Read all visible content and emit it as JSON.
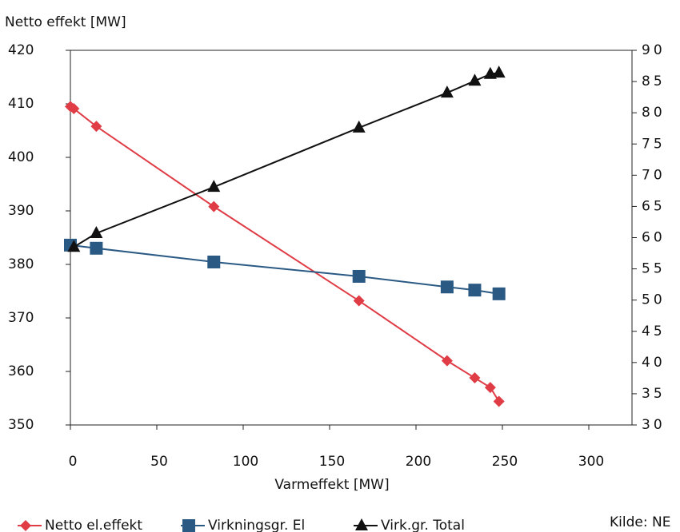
{
  "chart_data": {
    "type": "line",
    "y_label": "Netto effekt [MW]",
    "x_label": "Varmeffekt [MW]",
    "source": "Kilde: NE",
    "xlim": [
      0,
      325
    ],
    "xticks": [
      0,
      50,
      100,
      150,
      200,
      250,
      300
    ],
    "ylim": [
      350,
      420
    ],
    "yticks": [
      350,
      360,
      370,
      380,
      390,
      400,
      410,
      420
    ],
    "y2lim": [
      30,
      90
    ],
    "y2ticks": [
      30,
      35,
      40,
      45,
      50,
      55,
      60,
      65,
      70,
      75,
      80,
      85,
      90
    ],
    "series": [
      {
        "name": "Netto el.effekt",
        "color": "#e03c46",
        "marker": "diamond",
        "x": [
          0,
          2,
          15,
          83,
          167,
          218,
          234,
          243,
          248
        ],
        "values": [
          409.5,
          409.1,
          405.8,
          390.8,
          373.2,
          362,
          358.8,
          357,
          354.4
        ]
      },
      {
        "name": "Virkningsgr. El",
        "color": "#2a5a84",
        "marker": "square",
        "axis": "y2",
        "x": [
          0,
          15,
          83,
          167,
          218,
          234,
          248
        ],
        "values": [
          58.8,
          58.3,
          56.1,
          53.8,
          52.1,
          51.6,
          51.0
        ]
      },
      {
        "name": "Virk.gr. Total",
        "color": "#111111",
        "marker": "triangle",
        "axis": "y2",
        "x": [
          2,
          15,
          83,
          167,
          218,
          234,
          243,
          248
        ],
        "values": [
          58.5,
          60.7,
          68.1,
          77.6,
          83.2,
          85.1,
          86.2,
          86.4
        ]
      }
    ]
  }
}
